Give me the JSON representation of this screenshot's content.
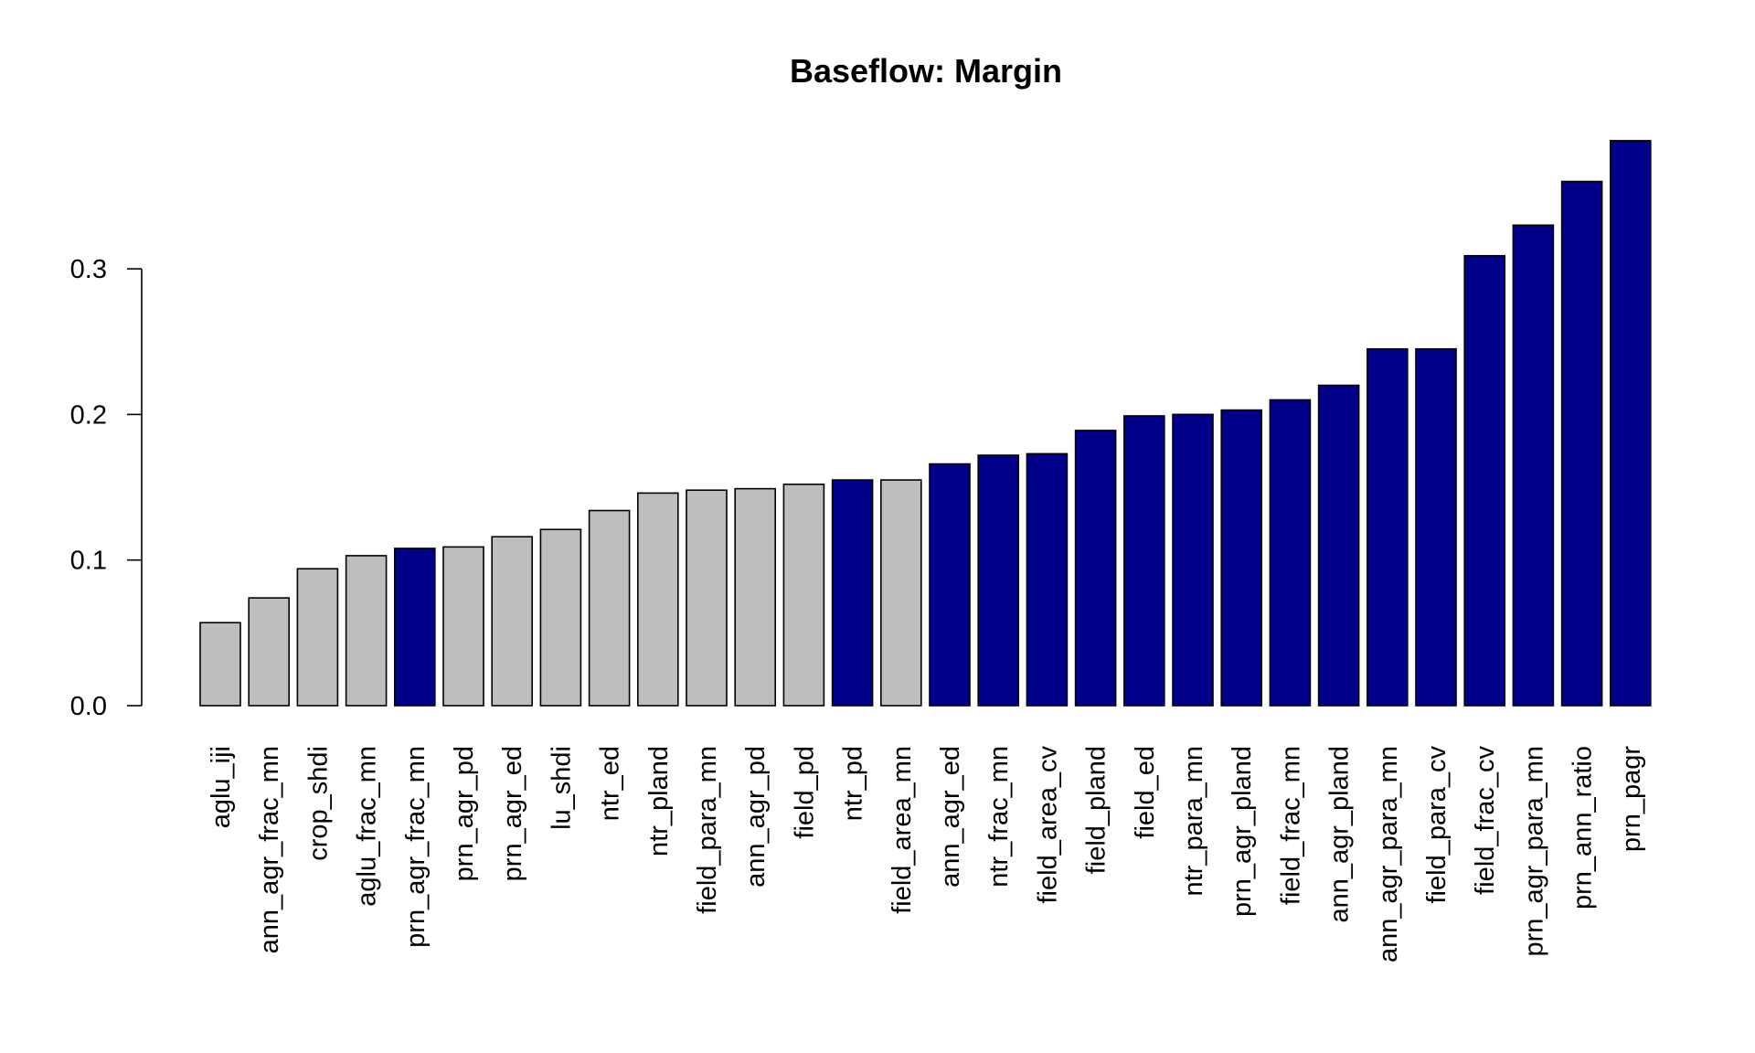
{
  "chart_data": {
    "type": "bar",
    "title": "Baseflow: Margin",
    "xlabel": "",
    "ylabel": "",
    "ylim": [
      0,
      0.39
    ],
    "yticks": [
      0.0,
      0.1,
      0.2,
      0.3
    ],
    "ytick_labels": [
      "0.0",
      "0.1",
      "0.2",
      "0.3"
    ],
    "grid": false,
    "legend": "none",
    "colors": {
      "highlighted": "#00008B",
      "default": "#BEBEBE"
    },
    "categories": [
      "aglu_iji",
      "ann_agr_frac_mn",
      "crop_shdi",
      "aglu_frac_mn",
      "prn_agr_frac_mn",
      "prn_agr_pd",
      "prn_agr_ed",
      "lu_shdi",
      "ntr_ed",
      "ntr_pland",
      "field_para_mn",
      "ann_agr_pd",
      "field_pd",
      "ntr_pd",
      "field_area_mn",
      "ann_agr_ed",
      "ntr_frac_mn",
      "field_area_cv",
      "field_pland",
      "field_ed",
      "ntr_para_mn",
      "prn_agr_pland",
      "field_frac_mn",
      "ann_agr_pland",
      "ann_agr_para_mn",
      "field_para_cv",
      "field_frac_cv",
      "prn_agr_para_mn",
      "prn_ann_ratio",
      "prn_pagr"
    ],
    "values": [
      0.057,
      0.074,
      0.094,
      0.103,
      0.108,
      0.109,
      0.116,
      0.121,
      0.134,
      0.146,
      0.148,
      0.149,
      0.152,
      0.155,
      0.155,
      0.166,
      0.172,
      0.173,
      0.189,
      0.199,
      0.2,
      0.203,
      0.21,
      0.22,
      0.245,
      0.245,
      0.309,
      0.33,
      0.36,
      0.388
    ],
    "highlighted": [
      false,
      false,
      false,
      false,
      true,
      false,
      false,
      false,
      false,
      false,
      false,
      false,
      false,
      true,
      false,
      true,
      true,
      true,
      true,
      true,
      true,
      true,
      true,
      true,
      true,
      true,
      true,
      true,
      true,
      true
    ]
  }
}
